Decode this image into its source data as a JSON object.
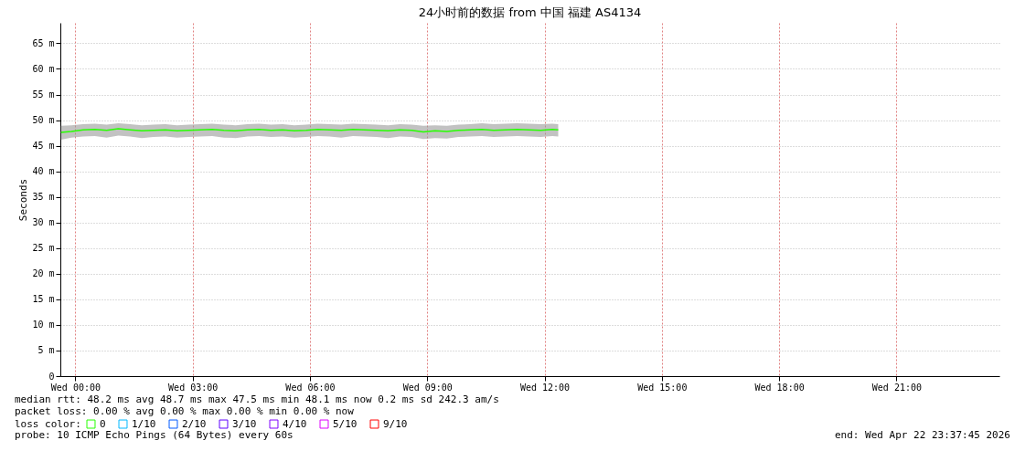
{
  "chart_data": {
    "type": "line",
    "title": "24小时前的数据 from 中国 福建 AS4134",
    "ylabel": "Seconds",
    "x": [
      "2026-04-21T23:38",
      "2026-04-21T23:54",
      "2026-04-22T00:12",
      "2026-04-22T00:30",
      "2026-04-22T00:48",
      "2026-04-22T01:06",
      "2026-04-22T01:24",
      "2026-04-22T01:42",
      "2026-04-22T02:00",
      "2026-04-22T02:18",
      "2026-04-22T02:36",
      "2026-04-22T02:54",
      "2026-04-22T03:12",
      "2026-04-22T03:30",
      "2026-04-22T03:48",
      "2026-04-22T04:06",
      "2026-04-22T04:24",
      "2026-04-22T04:42",
      "2026-04-22T05:00",
      "2026-04-22T05:18",
      "2026-04-22T05:36",
      "2026-04-22T05:54",
      "2026-04-22T06:12",
      "2026-04-22T06:30",
      "2026-04-22T06:48",
      "2026-04-22T07:06",
      "2026-04-22T07:24",
      "2026-04-22T07:42",
      "2026-04-22T08:00",
      "2026-04-22T08:18",
      "2026-04-22T08:36",
      "2026-04-22T08:54",
      "2026-04-22T09:12",
      "2026-04-22T09:30",
      "2026-04-22T09:48",
      "2026-04-22T10:06",
      "2026-04-22T10:24",
      "2026-04-22T10:42",
      "2026-04-22T11:00",
      "2026-04-22T11:18",
      "2026-04-22T11:36",
      "2026-04-22T11:54",
      "2026-04-22T12:12",
      "2026-04-22T12:21"
    ],
    "series": [
      {
        "name": "0",
        "color": "#26ff00",
        "values": [
          47.6,
          47.8,
          48.1,
          48.2,
          48.0,
          48.3,
          48.1,
          47.9,
          48.0,
          48.1,
          47.9,
          48.0,
          48.1,
          48.2,
          48.0,
          47.9,
          48.1,
          48.2,
          48.0,
          48.1,
          47.9,
          48.0,
          48.2,
          48.1,
          48.0,
          48.2,
          48.1,
          48.0,
          47.9,
          48.1,
          48.0,
          47.7,
          47.9,
          47.8,
          48.0,
          48.1,
          48.2,
          48.0,
          48.1,
          48.2,
          48.1,
          48.0,
          48.2,
          48.1
        ],
        "lower": [
          46.2,
          46.6,
          46.8,
          46.9,
          46.6,
          47.0,
          46.8,
          46.5,
          46.7,
          46.8,
          46.6,
          46.7,
          46.8,
          46.9,
          46.6,
          46.5,
          46.8,
          46.9,
          46.7,
          46.8,
          46.6,
          46.7,
          46.9,
          46.8,
          46.6,
          46.9,
          46.8,
          46.7,
          46.5,
          46.8,
          46.7,
          46.3,
          46.5,
          46.4,
          46.7,
          46.8,
          46.9,
          46.7,
          46.8,
          46.9,
          46.8,
          46.7,
          46.9,
          46.8
        ],
        "upper": [
          48.9,
          49.0,
          49.2,
          49.3,
          49.1,
          49.4,
          49.2,
          49.0,
          49.1,
          49.2,
          49.0,
          49.1,
          49.2,
          49.3,
          49.1,
          49.0,
          49.2,
          49.3,
          49.1,
          49.2,
          49.0,
          49.1,
          49.3,
          49.2,
          49.1,
          49.3,
          49.2,
          49.1,
          49.0,
          49.2,
          49.1,
          48.9,
          49.0,
          48.9,
          49.1,
          49.2,
          49.4,
          49.2,
          49.3,
          49.4,
          49.3,
          49.2,
          49.3,
          49.2
        ]
      },
      {
        "name": "1/10",
        "color": "#00b8ff",
        "values": [
          null,
          null,
          null,
          null,
          null,
          null,
          null,
          null,
          null,
          null,
          null,
          null,
          null,
          null,
          null,
          null,
          null,
          null,
          null,
          null,
          null,
          null,
          null,
          null,
          null,
          null,
          null,
          null,
          null,
          null,
          null,
          null,
          null,
          null,
          null,
          null,
          null,
          null,
          null,
          null,
          null,
          null,
          null,
          null
        ]
      },
      {
        "name": "2/10",
        "color": "#0059ff",
        "values": [
          null,
          null,
          null,
          null,
          null,
          null,
          null,
          null,
          null,
          null,
          null,
          null,
          null,
          null,
          null,
          null,
          null,
          null,
          null,
          null,
          null,
          null,
          null,
          null,
          null,
          null,
          null,
          null,
          null,
          null,
          null,
          null,
          null,
          null,
          null,
          null,
          null,
          null,
          null,
          null,
          null,
          null,
          null,
          null
        ]
      },
      {
        "name": "3/10",
        "color": "#5e00ff",
        "values": [
          null,
          null,
          null,
          null,
          null,
          null,
          null,
          null,
          null,
          null,
          null,
          null,
          null,
          null,
          null,
          null,
          null,
          null,
          null,
          null,
          null,
          null,
          null,
          null,
          null,
          null,
          null,
          null,
          null,
          null,
          null,
          null,
          null,
          null,
          null,
          null,
          null,
          null,
          null,
          null,
          null,
          null,
          null,
          null
        ]
      },
      {
        "name": "4/10",
        "color": "#7e00ff",
        "values": [
          null,
          null,
          null,
          null,
          null,
          null,
          null,
          null,
          null,
          null,
          null,
          null,
          null,
          null,
          null,
          null,
          null,
          null,
          null,
          null,
          null,
          null,
          null,
          null,
          null,
          null,
          null,
          null,
          null,
          null,
          null,
          null,
          null,
          null,
          null,
          null,
          null,
          null,
          null,
          null,
          null,
          null,
          null,
          null
        ]
      },
      {
        "name": "5/10",
        "color": "#dd00ff",
        "values": [
          null,
          null,
          null,
          null,
          null,
          null,
          null,
          null,
          null,
          null,
          null,
          null,
          null,
          null,
          null,
          null,
          null,
          null,
          null,
          null,
          null,
          null,
          null,
          null,
          null,
          null,
          null,
          null,
          null,
          null,
          null,
          null,
          null,
          null,
          null,
          null,
          null,
          null,
          null,
          null,
          null,
          null,
          null,
          null
        ]
      },
      {
        "name": "9/10",
        "color": "#ff0000",
        "values": [
          null,
          null,
          null,
          null,
          null,
          null,
          null,
          null,
          null,
          null,
          null,
          null,
          null,
          null,
          null,
          null,
          null,
          null,
          null,
          null,
          null,
          null,
          null,
          null,
          null,
          null,
          null,
          null,
          null,
          null,
          null,
          null,
          null,
          null,
          null,
          null,
          null,
          null,
          null,
          null,
          null,
          null,
          null,
          null
        ]
      }
    ],
    "legend_title": "loss color:",
    "legend": "bottom left",
    "xlim": [
      "2026-04-21T23:37",
      "2026-04-22T23:38"
    ],
    "xticks": [
      {
        "value": "2026-04-22T00:00",
        "label": "Wed 00:00"
      },
      {
        "value": "2026-04-22T03:00",
        "label": "Wed 03:00"
      },
      {
        "value": "2026-04-22T06:00",
        "label": "Wed 06:00"
      },
      {
        "value": "2026-04-22T09:00",
        "label": "Wed 09:00"
      },
      {
        "value": "2026-04-22T12:00",
        "label": "Wed 12:00"
      },
      {
        "value": "2026-04-22T15:00",
        "label": "Wed 15:00"
      },
      {
        "value": "2026-04-22T18:00",
        "label": "Wed 18:00"
      },
      {
        "value": "2026-04-22T21:00",
        "label": "Wed 21:00"
      }
    ],
    "ylim": [
      0,
      69
    ],
    "yticks": [
      0,
      {
        "value": 5,
        "label": "5 m"
      },
      {
        "value": 10,
        "label": "10 m"
      },
      {
        "value": 15,
        "label": "15 m"
      },
      {
        "value": 20,
        "label": "20 m"
      },
      {
        "value": 25,
        "label": "25 m"
      },
      {
        "value": 30,
        "label": "30 m"
      },
      {
        "value": 35,
        "label": "35 m"
      },
      {
        "value": 40,
        "label": "40 m"
      },
      {
        "value": 45,
        "label": "45 m"
      },
      {
        "value": 50,
        "label": "50 m"
      },
      {
        "value": 55,
        "label": "55 m"
      },
      {
        "value": 60,
        "label": "60 m"
      },
      {
        "value": 65,
        "label": "65 m"
      }
    ],
    "grid": true,
    "marker": "none",
    "line_style": "solid",
    "annotations": [
      "median rtt:  48.2 ms avg  48.7 ms max  47.5 ms min  48.1 ms now  0.2 ms sd  242.3   am/s",
      "packet loss: 0.00 % avg  0.00 % max  0.00 % min  0.00 % now",
      "probe:       10 ICMP Echo Pings (64 Bytes) every 60s",
      "end: Wed Apr 22 23:37:45 2026"
    ]
  }
}
